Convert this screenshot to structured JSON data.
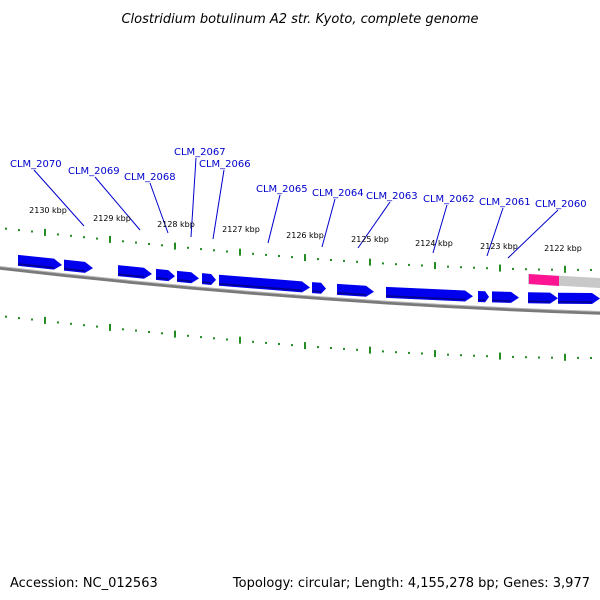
{
  "title": "Clostridium botulinum A2 str. Kyoto, complete genome",
  "accession": "Accession: NC_012563",
  "summary": "Topology: circular; Length: 4,155,278 bp; Genes: 3,977",
  "colors": {
    "gene_fill": "#0000ee",
    "highlight_fill": "#ff1493",
    "highlight_track": "#c8c8c8",
    "backbone": "#7a7a7a",
    "tick": "#228b22",
    "label": "#0000cc"
  },
  "kbp_labels": [
    "2130 kbp",
    "2129 kbp",
    "2128 kbp",
    "2127 kbp",
    "2126 kbp",
    "2125 kbp",
    "2124 kbp",
    "2123 kbp",
    "2122 kbp"
  ],
  "gene_labels": [
    "CLM_2070",
    "CLM_2069",
    "CLM_2068",
    "CLM_2067",
    "CLM_2066",
    "CLM_2065",
    "CLM_2064",
    "CLM_2063",
    "CLM_2062",
    "CLM_2061",
    "CLM_2060"
  ]
}
